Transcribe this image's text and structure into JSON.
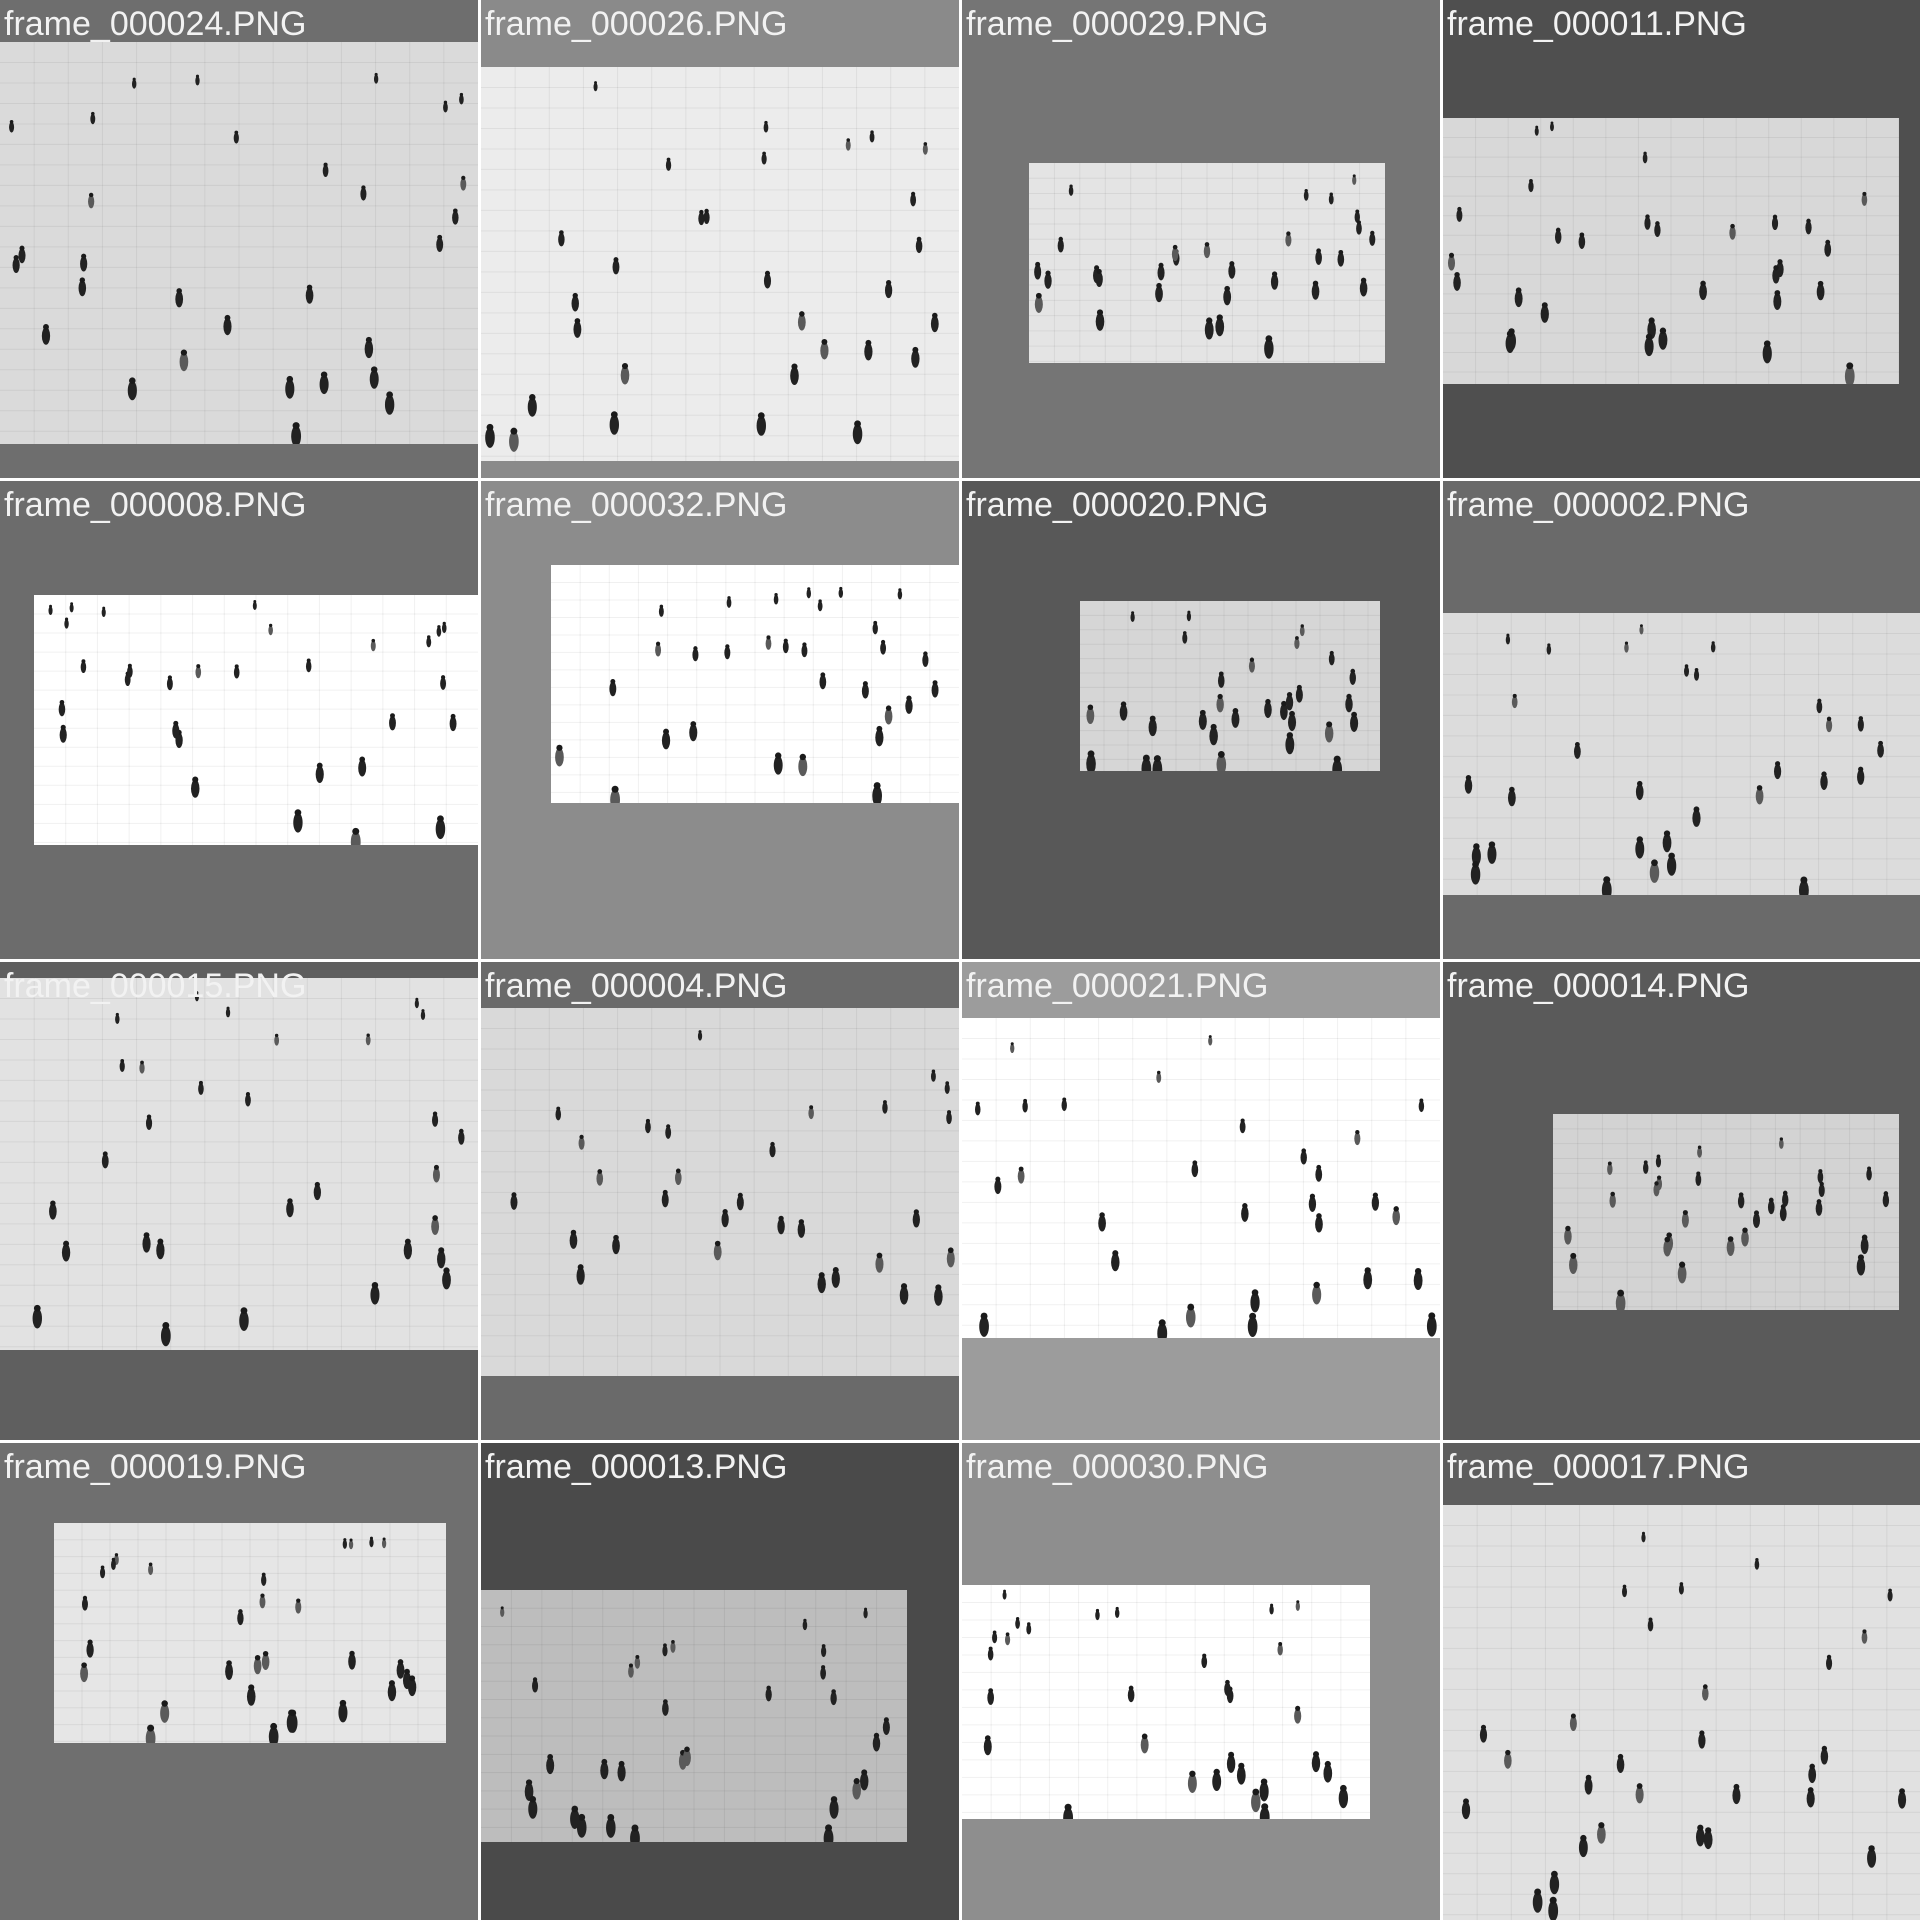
{
  "tiles": [
    {
      "label": "frame_000024.PNG",
      "background": "#6e6e6e",
      "photo_tone": "#dadada",
      "figure_count": 30
    },
    {
      "label": "frame_000026.PNG",
      "background": "#8a8a8a",
      "photo_tone": "#ececec",
      "figure_count": 30
    },
    {
      "label": "frame_000029.PNG",
      "background": "#757575",
      "photo_tone": "#e4e4e4",
      "figure_count": 30
    },
    {
      "label": "frame_000011.PNG",
      "background": "#4f4f4f",
      "photo_tone": "#d8d8d8",
      "figure_count": 30
    },
    {
      "label": "frame_000008.PNG",
      "background": "#6c6c6c",
      "photo_tone": "#ffffff",
      "figure_count": 30
    },
    {
      "label": "frame_000032.PNG",
      "background": "#8c8c8c",
      "photo_tone": "#ffffff",
      "figure_count": 30
    },
    {
      "label": "frame_000020.PNG",
      "background": "#585858",
      "photo_tone": "#d6d6d6",
      "figure_count": 30
    },
    {
      "label": "frame_000002.PNG",
      "background": "#6a6a6a",
      "photo_tone": "#dcdcdc",
      "figure_count": 30
    },
    {
      "label": "frame_000015.PNG",
      "background": "#5f5f5f",
      "photo_tone": "#e2e2e2",
      "figure_count": 30
    },
    {
      "label": "frame_000004.PNG",
      "background": "#6a6a6a",
      "photo_tone": "#d9d9d9",
      "figure_count": 30
    },
    {
      "label": "frame_000021.PNG",
      "background": "#9c9c9c",
      "photo_tone": "#ffffff",
      "figure_count": 30
    },
    {
      "label": "frame_000014.PNG",
      "background": "#5a5a5a",
      "photo_tone": "#d3d3d3",
      "figure_count": 30
    },
    {
      "label": "frame_000019.PNG",
      "background": "#6f6f6f",
      "photo_tone": "#e6e6e6",
      "figure_count": 30
    },
    {
      "label": "frame_000013.PNG",
      "background": "#4a4a4a",
      "photo_tone": "#bdbdbd",
      "figure_count": 30
    },
    {
      "label": "frame_000030.PNG",
      "background": "#8e8e8e",
      "photo_tone": "#ffffff",
      "figure_count": 30
    },
    {
      "label": "frame_000017.PNG",
      "background": "#5e5e5e",
      "photo_tone": "#e1e1e1",
      "figure_count": 30
    }
  ]
}
